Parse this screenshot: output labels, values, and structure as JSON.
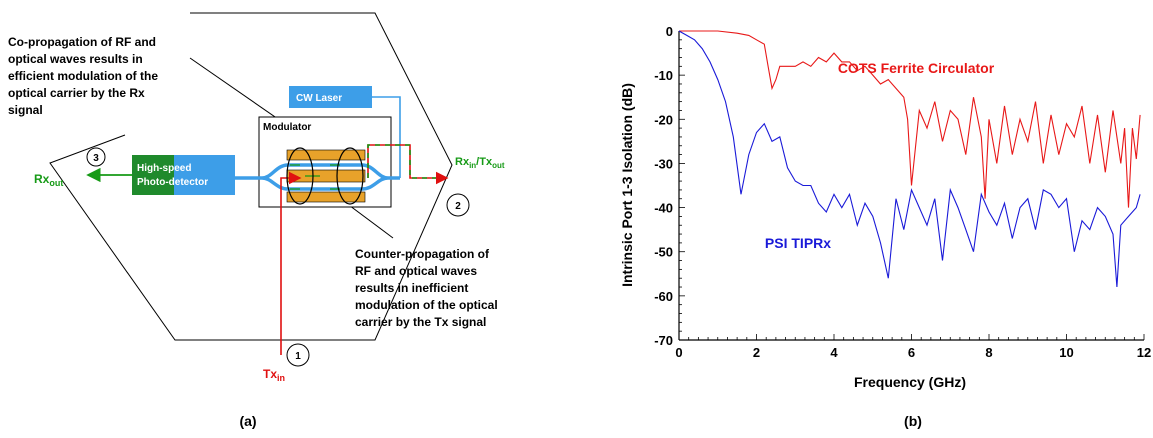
{
  "panel_a": {
    "caption": "(a)",
    "co_prop_lines": [
      "Co-propagation of RF and",
      "optical waves results in",
      "efficient modulation of the",
      "optical carrier by the Rx",
      "signal"
    ],
    "counter_prop_lines": [
      "Counter-propagation of",
      "RF and optical waves",
      "results in inefficient",
      "modulation of the optical",
      "carrier by the Tx signal"
    ],
    "cw_laser": "CW Laser",
    "modulator": "Modulator",
    "photodetector_lines": [
      "High-speed",
      "Photo-detector"
    ],
    "port1": "1",
    "port2": "2",
    "port3": "3",
    "rx_out_main": "Rx",
    "rx_out_sub": "out",
    "rxtx_rx": "Rx",
    "rxtx_rx_sub": "in",
    "rxtx_slash_tx": "/Tx",
    "rxtx_tx_sub": "out",
    "tx_in_main": "Tx",
    "tx_in_sub": "in",
    "colors": {
      "green": "#169a16",
      "red": "#e01010",
      "blue": "#3d9ee8",
      "orange": "#e8a22a",
      "dark_green": "#1f8a2c"
    }
  },
  "panel_b": {
    "caption": "(b)",
    "chart_data": {
      "type": "line",
      "xlabel": "Frequency (GHz)",
      "ylabel": "Intrinsic Port 1-3 Isolation (dB)",
      "xlim": [
        0,
        12
      ],
      "ylim": [
        -70,
        0
      ],
      "xticks": [
        0,
        2,
        4,
        6,
        8,
        10,
        12
      ],
      "yticks": [
        0,
        -10,
        -20,
        -30,
        -40,
        -50,
        -60,
        -70
      ],
      "grid": false,
      "series": [
        {
          "name": "COTS Ferrite Circulator",
          "color": "#e81818",
          "x": [
            0,
            0.5,
            1.0,
            1.5,
            1.8,
            2.0,
            2.2,
            2.3,
            2.4,
            2.5,
            2.6,
            2.8,
            3.0,
            3.2,
            3.4,
            3.6,
            3.8,
            4.0,
            4.2,
            4.4,
            4.6,
            4.8,
            5.0,
            5.2,
            5.4,
            5.6,
            5.8,
            5.9,
            6.0,
            6.2,
            6.4,
            6.6,
            6.8,
            7.0,
            7.2,
            7.4,
            7.6,
            7.8,
            7.9,
            8.0,
            8.2,
            8.4,
            8.6,
            8.8,
            9.0,
            9.2,
            9.4,
            9.6,
            9.8,
            10.0,
            10.2,
            10.4,
            10.6,
            10.8,
            11.0,
            11.2,
            11.4,
            11.5,
            11.6,
            11.7,
            11.8,
            11.9
          ],
          "y": [
            0,
            0,
            0,
            -0.5,
            -1,
            -2,
            -3,
            -8,
            -13,
            -11,
            -8,
            -8,
            -8,
            -7,
            -8,
            -6,
            -7,
            -5,
            -7,
            -7,
            -9,
            -8,
            -10,
            -12,
            -11,
            -13,
            -15,
            -20,
            -35,
            -18,
            -22,
            -16,
            -25,
            -18,
            -20,
            -28,
            -15,
            -24,
            -38,
            -20,
            -30,
            -17,
            -28,
            -20,
            -25,
            -16,
            -30,
            -19,
            -28,
            -21,
            -24,
            -17,
            -30,
            -19,
            -32,
            -18,
            -30,
            -22,
            -40,
            -22,
            -29,
            -19
          ]
        },
        {
          "name": "PSI TIPRx",
          "color": "#1a1ad8",
          "x": [
            0,
            0.2,
            0.4,
            0.6,
            0.8,
            1.0,
            1.2,
            1.4,
            1.6,
            1.8,
            2.0,
            2.2,
            2.4,
            2.6,
            2.8,
            3.0,
            3.2,
            3.4,
            3.6,
            3.8,
            4.0,
            4.2,
            4.4,
            4.6,
            4.8,
            5.0,
            5.2,
            5.4,
            5.6,
            5.8,
            6.0,
            6.2,
            6.4,
            6.6,
            6.8,
            7.0,
            7.2,
            7.4,
            7.6,
            7.8,
            8.0,
            8.2,
            8.4,
            8.6,
            8.8,
            9.0,
            9.2,
            9.4,
            9.6,
            9.8,
            10.0,
            10.2,
            10.4,
            10.6,
            10.8,
            11.0,
            11.2,
            11.3,
            11.4,
            11.6,
            11.8,
            11.9
          ],
          "y": [
            0,
            -1,
            -2,
            -4,
            -7,
            -11,
            -16,
            -24,
            -37,
            -28,
            -23,
            -21,
            -25,
            -24,
            -31,
            -34,
            -35,
            -35,
            -39,
            -41,
            -37,
            -40,
            -37,
            -44,
            -39,
            -42,
            -48,
            -56,
            -38,
            -45,
            -36,
            -40,
            -44,
            -38,
            -52,
            -36,
            -40,
            -45,
            -50,
            -37,
            -41,
            -44,
            -39,
            -47,
            -40,
            -38,
            -45,
            -36,
            -37,
            -40,
            -38,
            -50,
            -43,
            -45,
            -40,
            -42,
            -46,
            -58,
            -44,
            -42,
            -40,
            -37
          ]
        }
      ],
      "xtick_labels": [
        "0",
        "2",
        "4",
        "6",
        "8",
        "10",
        "12"
      ],
      "ytick_labels": [
        "0",
        "-10",
        "-20",
        "-30",
        "-40",
        "-50",
        "-60",
        "-70"
      ],
      "annotations": [
        "COTS Ferrite Circulator",
        "PSI TIPRx"
      ]
    }
  }
}
